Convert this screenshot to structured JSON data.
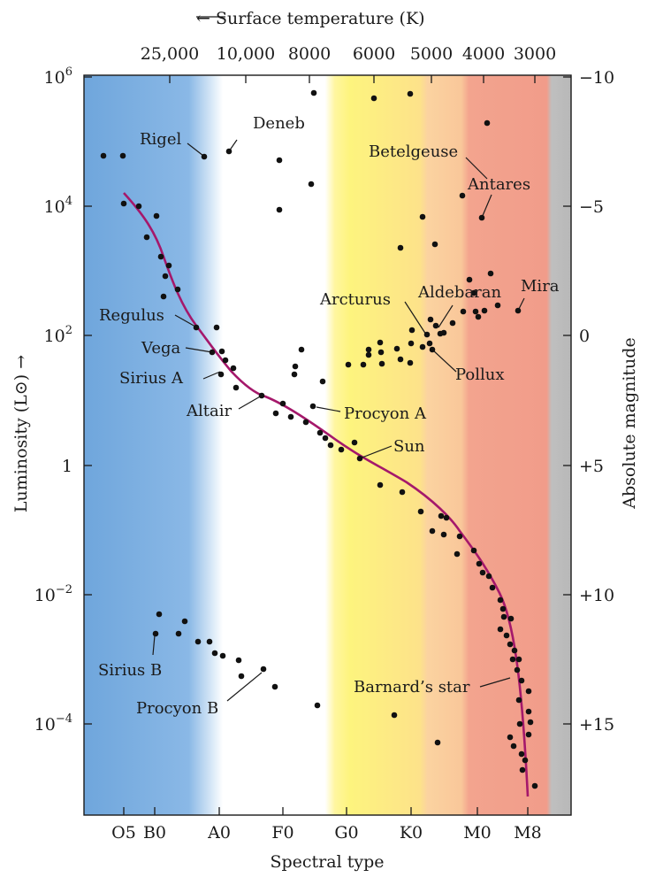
{
  "chart_data": {
    "type": "scatter",
    "xlabel": "Spectral type",
    "ylabel": "Luminosity (L⊙) →",
    "top_axis_label": "← Surface temperature (K)",
    "right_axis_label": "Absolute magnitude",
    "x_ticks": [
      "O5",
      "B0",
      "A0",
      "F0",
      "G0",
      "K0",
      "M0",
      "M8"
    ],
    "top_ticks": [
      "25,000",
      "10,000",
      "8000",
      "6000",
      "5000",
      "4000",
      "3000"
    ],
    "y_ticks": [
      {
        "base": "10",
        "exp": "6",
        "value": 1000000
      },
      {
        "base": "10",
        "exp": "4",
        "value": 10000
      },
      {
        "base": "10",
        "exp": "2",
        "value": 100
      },
      {
        "base": "1",
        "exp": "",
        "value": 1
      },
      {
        "base": "10",
        "exp": "−2",
        "value": 0.01
      },
      {
        "base": "10",
        "exp": "−4",
        "value": 0.0001
      }
    ],
    "y_scale": "log",
    "ylim": [
      3.6e-06,
      1200000
    ],
    "right_ticks": [
      "−10",
      "−5",
      "0",
      "+5",
      "+10",
      "+15"
    ],
    "background_bands": [
      "blue (O, B)",
      "white (A, F)",
      "yellow (G, K)",
      "orange (K)",
      "red (M)",
      "gray"
    ],
    "main_sequence_curve_color": "#a5186b",
    "star_labels": [
      "Deneb",
      "Rigel",
      "Betelgeuse",
      "Antares",
      "Mira",
      "Aldebaran",
      "Arcturus",
      "Regulus",
      "Vega",
      "Sirius A",
      "Pollux",
      "Altair",
      "Procyon A",
      "Sun",
      "Sirius B",
      "Procyon B",
      "Barnard’s star"
    ],
    "point_count": 118,
    "grid": false,
    "legend": "none"
  }
}
